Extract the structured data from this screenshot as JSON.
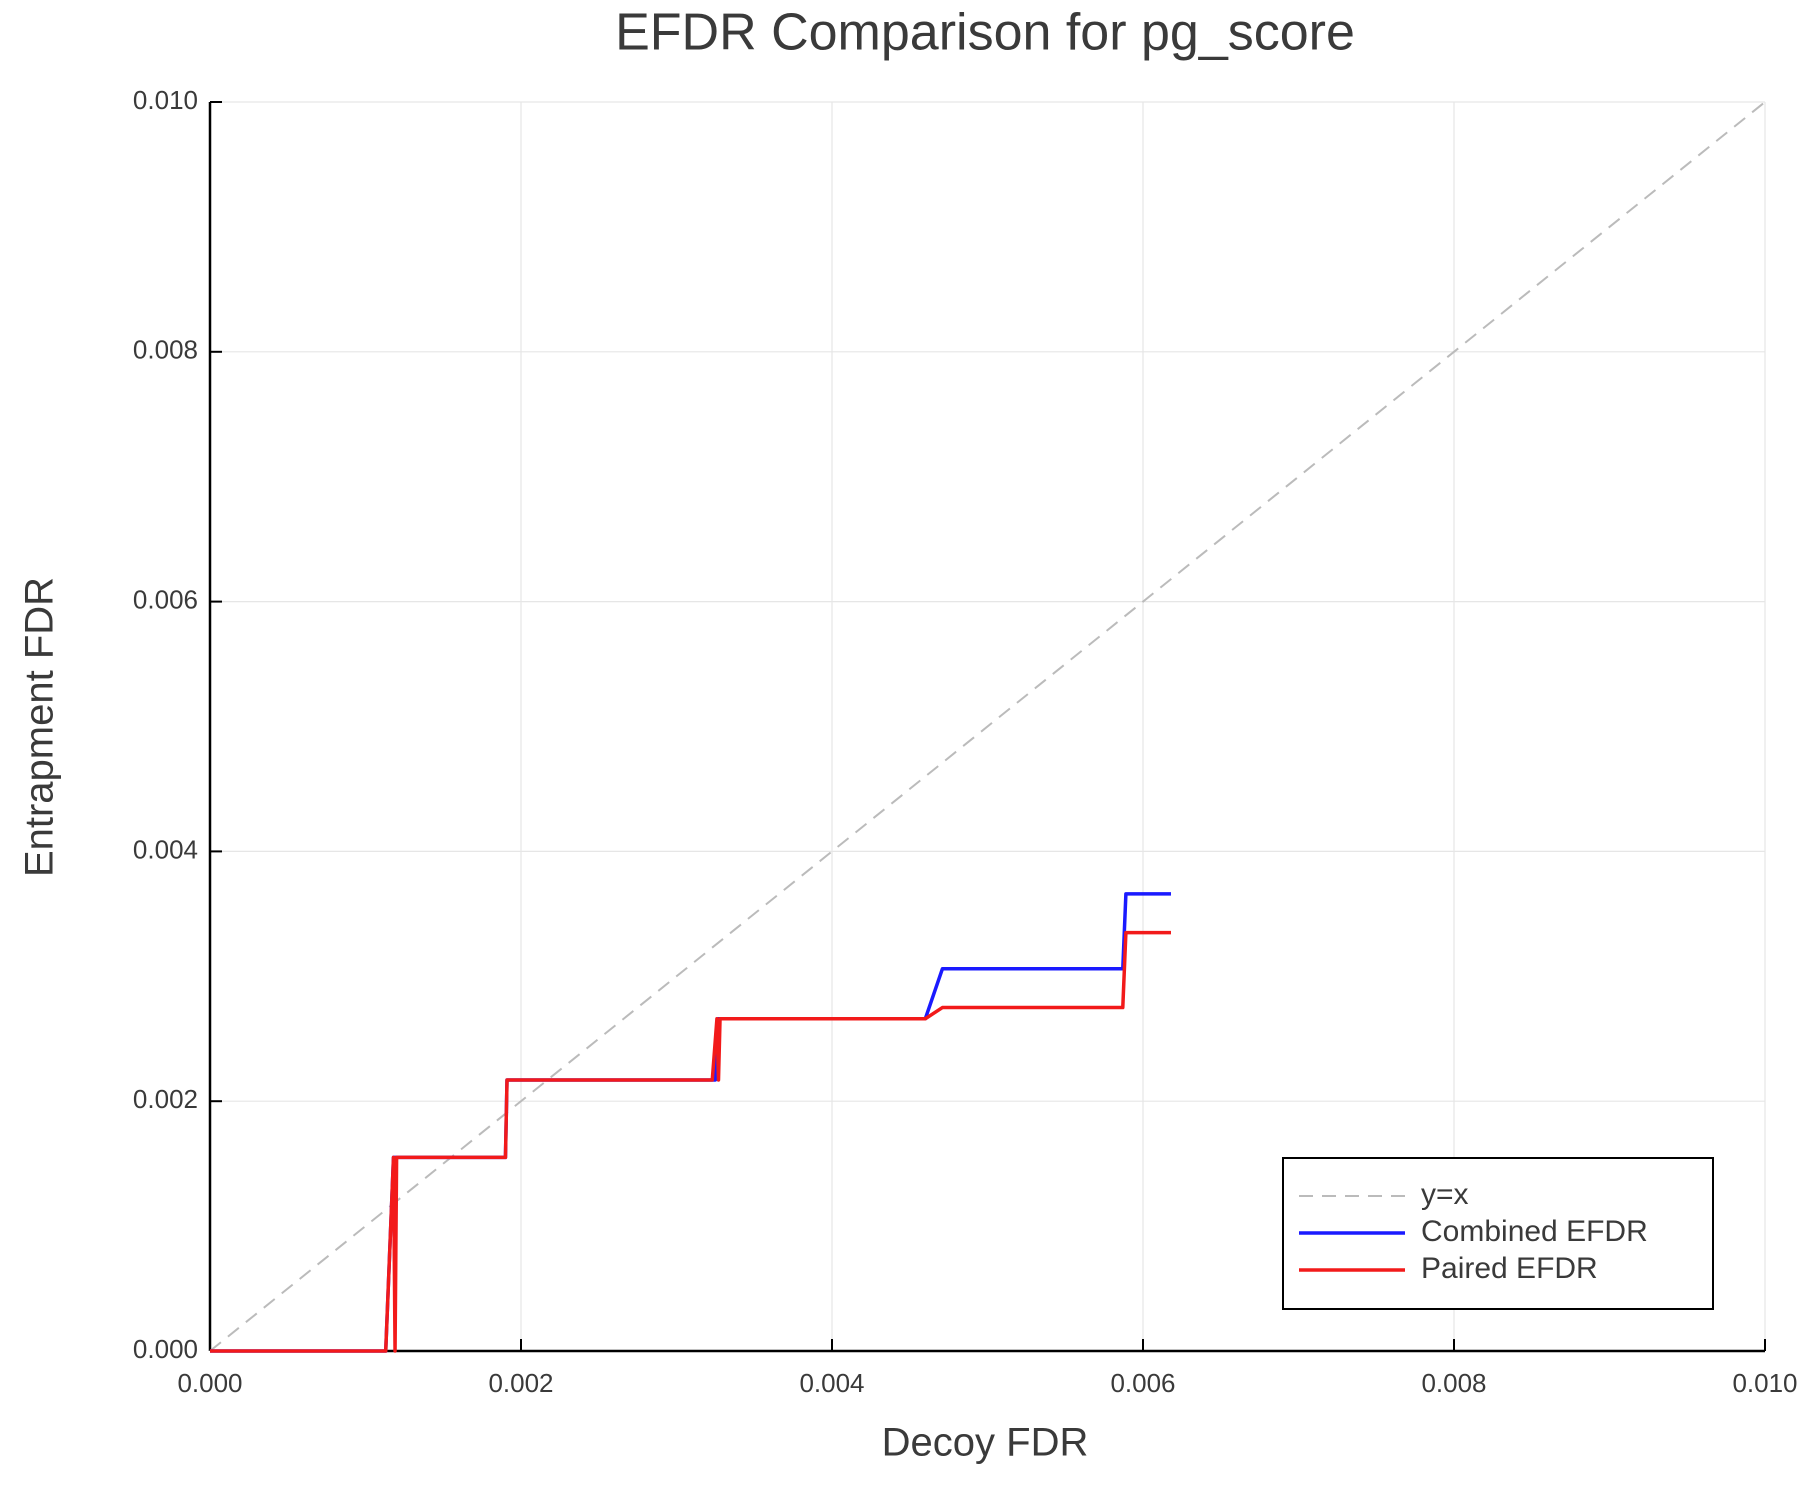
{
  "chart_data": {
    "type": "line",
    "title": "EFDR Comparison for pg_score",
    "x_label": "Decoy FDR",
    "y_label": "Entrapment FDR",
    "xlim": [
      0,
      0.01
    ],
    "ylim": [
      0,
      0.01
    ],
    "xticks": [
      {
        "value": 0,
        "label": "0.000"
      },
      0.002,
      0.004,
      0.006,
      0.008,
      {
        "value": 0.01,
        "label": "0.010"
      }
    ],
    "yticks": [
      {
        "value": 0,
        "label": "0.000"
      },
      0.002,
      0.004,
      0.006,
      0.008,
      {
        "value": 0.01,
        "label": "0.010"
      }
    ],
    "grid": true,
    "legend": "lower right",
    "series": [
      {
        "name": "y=x",
        "color": "#bbbbbb",
        "dash": true,
        "x": [
          0,
          0.01
        ],
        "values": [
          0,
          0.01
        ]
      },
      {
        "name": "Combined EFDR",
        "color": "#1a1aff",
        "x": [
          0,
          0.00113,
          0.00118,
          0.0019,
          0.00191,
          0.00325,
          0.00327,
          0.0046,
          0.00471,
          0.00587,
          0.00589,
          0.00618
        ],
        "values": [
          0,
          0,
          0.00155,
          0.00155,
          0.00217,
          0.00217,
          0.00266,
          0.00266,
          0.00306,
          0.00306,
          0.00366,
          0.00366
        ]
      },
      {
        "name": "Paired EFDR",
        "color": "#f21a1a",
        "x": [
          0,
          0.00113,
          0.00118,
          0.00119,
          0.0012,
          0.0019,
          0.00191,
          0.00323,
          0.00326,
          0.00327,
          0.00328,
          0.0046,
          0.00471,
          0.00587,
          0.00589,
          0.00618
        ],
        "values": [
          0,
          0,
          0.00155,
          0,
          0.00155,
          0.00155,
          0.00217,
          0.00217,
          0.00266,
          0.00217,
          0.00266,
          0.00266,
          0.00275,
          0.00275,
          0.00335,
          0.00335
        ]
      }
    ]
  }
}
